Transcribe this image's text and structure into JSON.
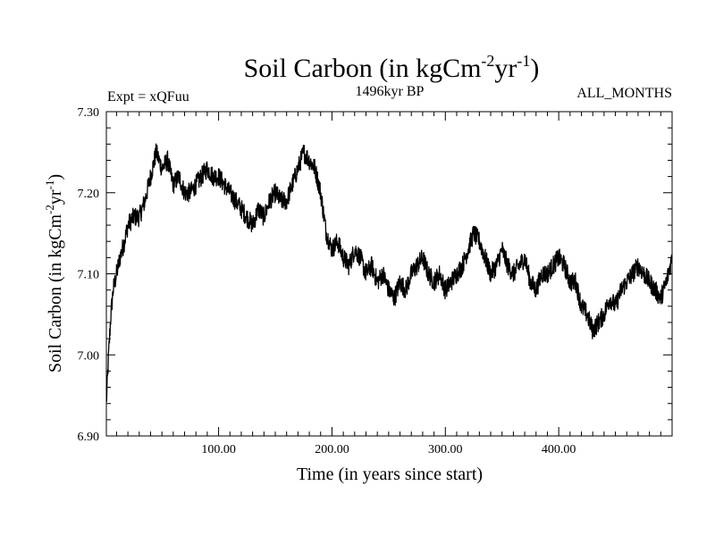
{
  "header": {
    "title_main": "Soil Carbon (in kgCm",
    "title_exp1": "-2",
    "title_mid": "yr",
    "title_exp2": "-1",
    "title_end": ")",
    "experiment": "Expt = xQFuu",
    "period": "1496kyr BP",
    "months": "ALL_MONTHS"
  },
  "chart_data": {
    "type": "line",
    "title": "Soil Carbon (in kgCm-2yr-1)",
    "xlabel": "Time (in years since start)",
    "ylabel": "Soil Carbon (in kgCm-2yr-1)",
    "ylabel_parts": {
      "main": "Soil Carbon (in kgCm",
      "exp1": "-2",
      "mid": "yr",
      "exp2": "-1",
      "end": ")"
    },
    "xlim": [
      1,
      500
    ],
    "ylim": [
      6.9,
      7.3
    ],
    "x_ticks": [
      100,
      200,
      300,
      400
    ],
    "x_tick_labels": [
      "100.00",
      "200.00",
      "300.00",
      "400.00"
    ],
    "y_ticks": [
      6.9,
      7.0,
      7.1,
      7.2,
      7.3
    ],
    "y_tick_labels": [
      "6.90",
      "7.00",
      "7.10",
      "7.20",
      "7.30"
    ],
    "grid": false,
    "series": [
      {
        "name": "Soil Carbon",
        "color": "#000000",
        "x": [
          1,
          3,
          5,
          7,
          10,
          13,
          17,
          20,
          25,
          30,
          35,
          40,
          45,
          50,
          55,
          60,
          65,
          70,
          75,
          80,
          85,
          90,
          95,
          100,
          105,
          110,
          115,
          120,
          125,
          130,
          135,
          140,
          145,
          150,
          155,
          160,
          165,
          170,
          175,
          180,
          185,
          190,
          195,
          200,
          205,
          210,
          215,
          220,
          225,
          230,
          235,
          240,
          245,
          250,
          255,
          260,
          265,
          270,
          275,
          280,
          285,
          290,
          295,
          300,
          305,
          310,
          315,
          320,
          325,
          330,
          335,
          340,
          345,
          350,
          355,
          360,
          365,
          370,
          375,
          380,
          385,
          390,
          395,
          400,
          405,
          410,
          415,
          420,
          425,
          430,
          435,
          440,
          445,
          450,
          455,
          460,
          465,
          470,
          475,
          480,
          485,
          490,
          495,
          500
        ],
        "y": [
          6.94,
          7.0,
          7.05,
          7.08,
          7.1,
          7.12,
          7.14,
          7.16,
          7.17,
          7.17,
          7.19,
          7.22,
          7.25,
          7.23,
          7.24,
          7.21,
          7.22,
          7.2,
          7.2,
          7.21,
          7.22,
          7.23,
          7.22,
          7.22,
          7.21,
          7.2,
          7.19,
          7.18,
          7.17,
          7.16,
          7.18,
          7.17,
          7.19,
          7.2,
          7.19,
          7.19,
          7.21,
          7.23,
          7.25,
          7.24,
          7.23,
          7.2,
          7.15,
          7.13,
          7.14,
          7.12,
          7.11,
          7.13,
          7.12,
          7.1,
          7.11,
          7.09,
          7.1,
          7.08,
          7.07,
          7.09,
          7.08,
          7.1,
          7.11,
          7.12,
          7.1,
          7.09,
          7.1,
          7.08,
          7.09,
          7.1,
          7.11,
          7.13,
          7.15,
          7.14,
          7.12,
          7.1,
          7.11,
          7.13,
          7.11,
          7.1,
          7.11,
          7.12,
          7.09,
          7.08,
          7.1,
          7.1,
          7.11,
          7.12,
          7.11,
          7.09,
          7.09,
          7.06,
          7.05,
          7.03,
          7.04,
          7.05,
          7.07,
          7.06,
          7.08,
          7.09,
          7.1,
          7.11,
          7.1,
          7.09,
          7.08,
          7.07,
          7.09,
          7.12
        ]
      }
    ]
  }
}
